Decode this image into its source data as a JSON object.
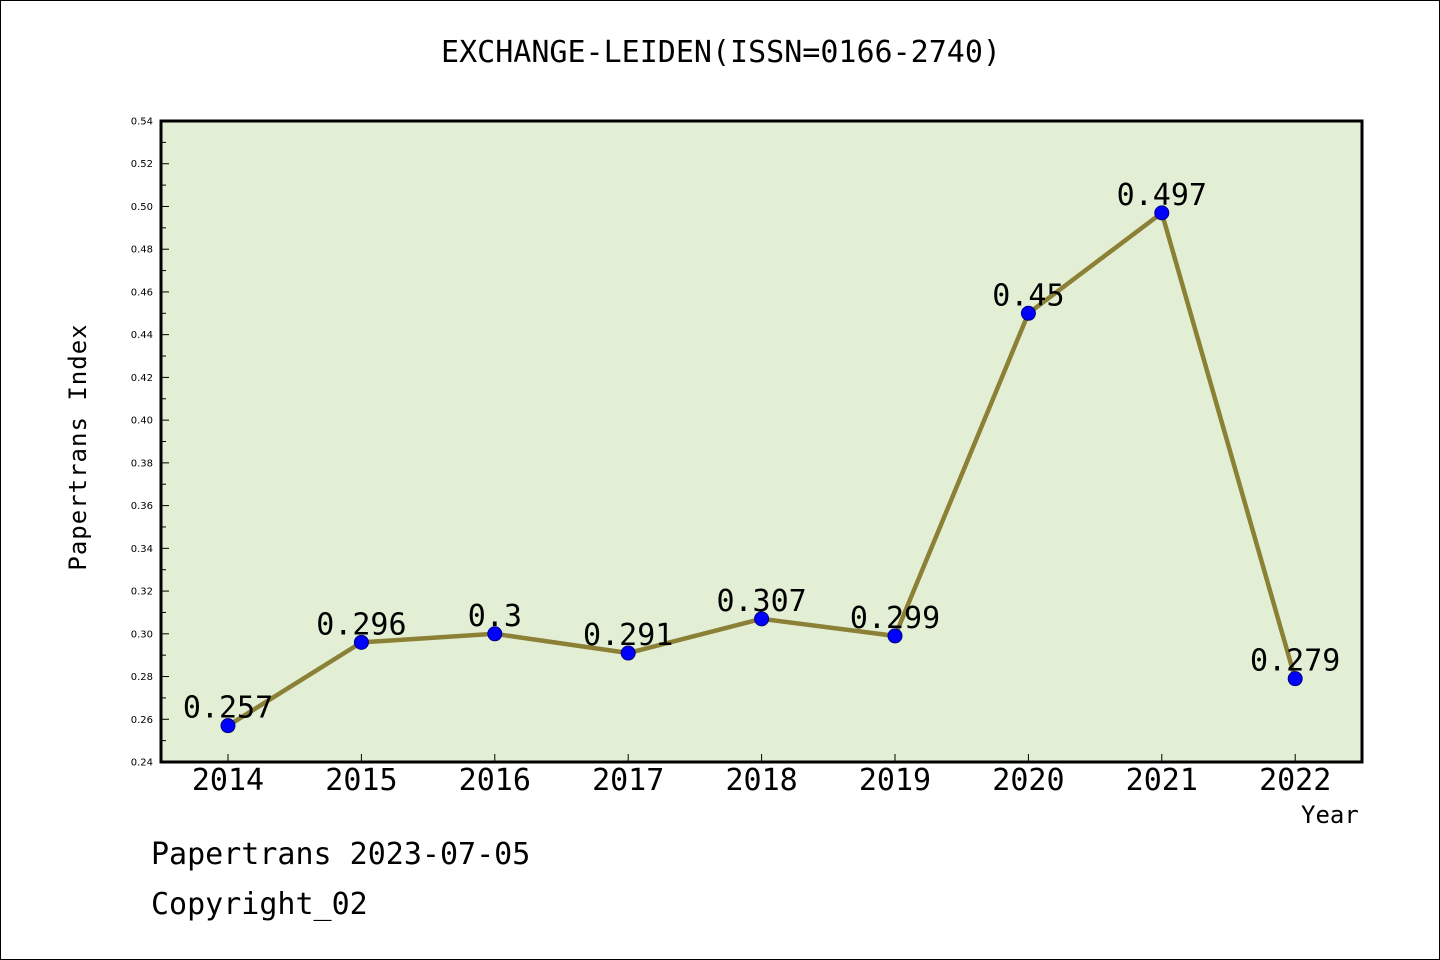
{
  "chart_data": {
    "type": "line",
    "title": "EXCHANGE-LEIDEN(ISSN=0166-2740)",
    "xlabel": "Year",
    "ylabel": "Papertrans Index",
    "categories": [
      "2014",
      "2015",
      "2016",
      "2017",
      "2018",
      "2019",
      "2020",
      "2021",
      "2022"
    ],
    "series": [
      {
        "values": [
          0.257,
          0.296,
          0.3,
          0.291,
          0.307,
          0.299,
          0.45,
          0.497,
          0.279
        ],
        "data_labels": [
          "0.257",
          "0.296",
          "0.3",
          "0.291",
          "0.307",
          "0.299",
          "0.45",
          "0.497",
          "0.279"
        ]
      }
    ],
    "ylim": [
      0.24,
      0.54
    ],
    "yticks": [
      "0.24",
      "0.26",
      "0.28",
      "0.30",
      "0.32",
      "0.34",
      "0.36",
      "0.38",
      "0.40",
      "0.42",
      "0.44",
      "0.46",
      "0.48",
      "0.50",
      "0.52",
      "0.54"
    ],
    "grid": false,
    "legend": "none",
    "colors": {
      "plot_background": "#e2efd5",
      "line": "#8b8035",
      "marker": "#0000ff",
      "axis": "#000000"
    }
  },
  "footer": {
    "date_text": "Papertrans 2023-07-05",
    "copyright_text": "Copyright_02"
  }
}
